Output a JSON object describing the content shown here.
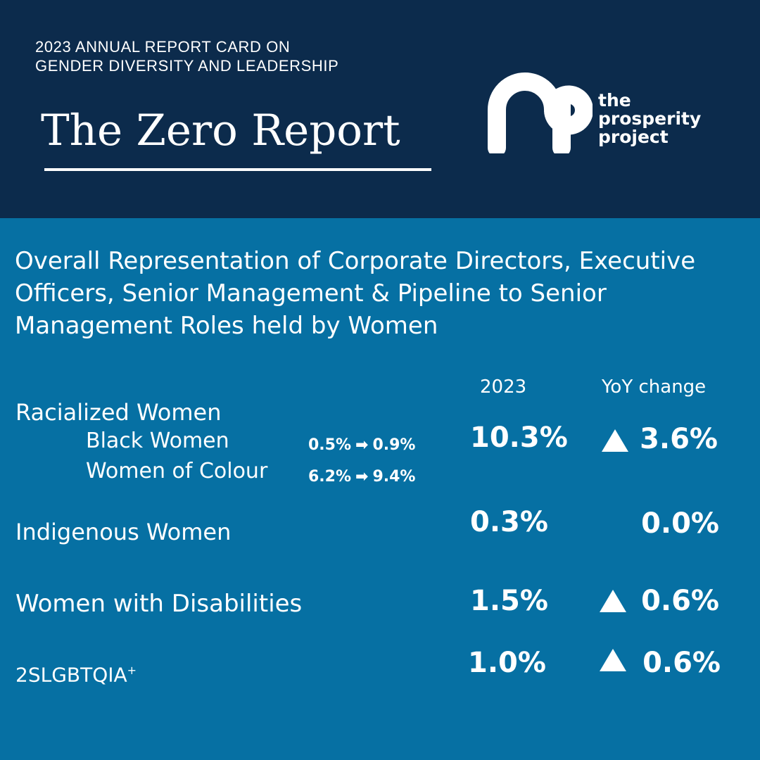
{
  "header": {
    "kicker_line1": "2023 ANNUAL REPORT CARD ON",
    "kicker_line2": "GENDER DIVERSITY AND LEADERSHIP",
    "title": "The Zero Report",
    "logo": {
      "line1": "the",
      "line2": "prosperity",
      "line3": "project"
    }
  },
  "main": {
    "subtitle": "Overall Representation of Corporate Directors, Executive Officers, Senior Management & Pipeline to Senior Management Roles held by Women",
    "columns": {
      "year": "2023",
      "yoy": "YoY change"
    },
    "rows": {
      "racialized": {
        "label": "Racialized Women",
        "value": "10.3%",
        "yoy": "3.6%",
        "subrows": [
          {
            "label": "Black Women",
            "from": "0.5%",
            "arrow": "➡",
            "to": "0.9%"
          },
          {
            "label": "Women of Colour",
            "from": "6.2%",
            "arrow": "➡",
            "to": "9.4%"
          }
        ]
      },
      "indigenous": {
        "label": "Indigenous Women",
        "value": "0.3%",
        "yoy": "0.0%"
      },
      "disabilities": {
        "label": "Women with Disabilities",
        "value": "1.5%",
        "yoy": "0.6%"
      },
      "lgbtq": {
        "label": "2SLGBTQIA",
        "sup": "+",
        "value": "1.0%",
        "yoy": "0.6%"
      }
    }
  }
}
